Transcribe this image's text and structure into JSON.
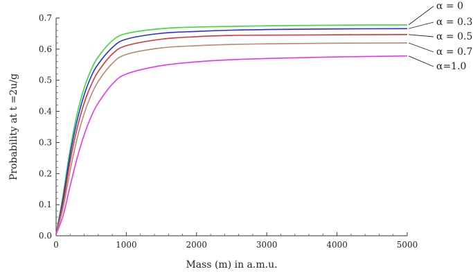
{
  "chart_data": {
    "type": "line",
    "title": "",
    "xlabel": "Mass (m) in a.m.u.",
    "ylabel": "Probability at t =2u/g",
    "xlim": [
      0,
      5000
    ],
    "ylim": [
      0.0,
      0.7
    ],
    "xticks": [
      0,
      1000,
      2000,
      3000,
      4000,
      5000
    ],
    "xtick_labels": [
      "0",
      "1000",
      "2000",
      "3000",
      "4000",
      "5000"
    ],
    "yticks": [
      0.0,
      0.1,
      0.2,
      0.3,
      0.4,
      0.5,
      0.6,
      0.7
    ],
    "ytick_labels": [
      "0.0",
      "0.1",
      "0.2",
      "0.3",
      "0.4",
      "0.5",
      "0.6",
      "0.7"
    ],
    "grid": false,
    "legend_placement": "right",
    "x": [
      0,
      100,
      200,
      300,
      400,
      500,
      600,
      800,
      1000,
      1500,
      2000,
      2500,
      3000,
      4000,
      5000
    ],
    "series": [
      {
        "name": "α = 0",
        "color": "#33dd33",
        "values": [
          0.005,
          0.132,
          0.278,
          0.392,
          0.475,
          0.534,
          0.575,
          0.627,
          0.65,
          0.666,
          0.671,
          0.673,
          0.675,
          0.677,
          0.678
        ]
      },
      {
        "name": "α = 0.3",
        "color": "#2a2aee",
        "values": [
          0.005,
          0.12,
          0.261,
          0.371,
          0.453,
          0.512,
          0.552,
          0.605,
          0.632,
          0.651,
          0.657,
          0.661,
          0.663,
          0.665,
          0.666
        ]
      },
      {
        "name": "α = 0.5",
        "color": "#e03030",
        "values": [
          0.005,
          0.105,
          0.24,
          0.346,
          0.427,
          0.485,
          0.528,
          0.584,
          0.611,
          0.632,
          0.64,
          0.644,
          0.645,
          0.646,
          0.647
        ]
      },
      {
        "name": "α = 0.7",
        "color": "#b88868",
        "values": [
          0.005,
          0.09,
          0.21,
          0.313,
          0.393,
          0.452,
          0.496,
          0.554,
          0.583,
          0.604,
          0.611,
          0.615,
          0.617,
          0.619,
          0.62
        ]
      },
      {
        "name": "α=1.0",
        "color": "#ee33ee",
        "values": [
          0.005,
          0.065,
          0.16,
          0.25,
          0.325,
          0.383,
          0.427,
          0.487,
          0.52,
          0.547,
          0.559,
          0.566,
          0.57,
          0.575,
          0.578
        ]
      }
    ]
  }
}
